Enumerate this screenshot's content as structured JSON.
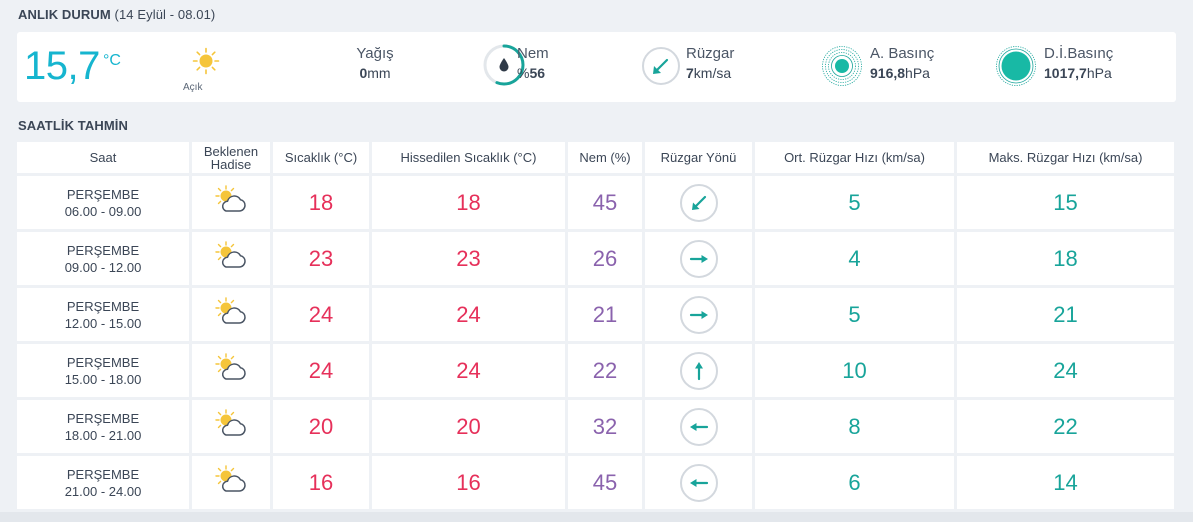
{
  "now": {
    "title": "ANLIK DURUM",
    "date_text": "(14 Eylül - 08.01)",
    "temperature": "15,7",
    "temp_unit": "°C",
    "condition": "Açık",
    "condition_icon": "sun-icon",
    "rain": {
      "label": "Yağış",
      "value": "0",
      "unit": "mm"
    },
    "humidity": {
      "label": "Nem",
      "prefix": "%",
      "value": "56",
      "percent": 56
    },
    "wind": {
      "label": "Rüzgar",
      "value": "7",
      "unit": "km/sa",
      "direction_icon": "arrow-down-left-icon"
    },
    "pressure": {
      "label": "A. Basınç",
      "value": "916,8",
      "unit": "hPa"
    },
    "sea_pressure": {
      "label": "D.İ.Basınç",
      "value": "1017,7",
      "unit": "hPa"
    }
  },
  "hourly": {
    "title": "SAATLİK TAHMİN",
    "headers": {
      "time": "Saat",
      "event_1": "Beklenen",
      "event_2": "Hadise",
      "temp": "Sıcaklık (°C)",
      "feels": "Hissedilen Sıcaklık (°C)",
      "humidity": "Nem (%)",
      "wind_dir": "Rüzgar Yönü",
      "wind_avg": "Ort. Rüzgar Hızı (km/sa)",
      "wind_max": "Maks. Rüzgar Hızı (km/sa)"
    },
    "rows": [
      {
        "day": "PERŞEMBE",
        "range": "06.00 - 09.00",
        "icon": "partly-cloudy-icon",
        "temp": "18",
        "feels": "18",
        "humidity": "45",
        "wind_dir": "down-left",
        "wind_avg": "5",
        "wind_max": "15"
      },
      {
        "day": "PERŞEMBE",
        "range": "09.00 - 12.00",
        "icon": "partly-cloudy-icon",
        "temp": "23",
        "feels": "23",
        "humidity": "26",
        "wind_dir": "right",
        "wind_avg": "4",
        "wind_max": "18"
      },
      {
        "day": "PERŞEMBE",
        "range": "12.00 - 15.00",
        "icon": "partly-cloudy-icon",
        "temp": "24",
        "feels": "24",
        "humidity": "21",
        "wind_dir": "right",
        "wind_avg": "5",
        "wind_max": "21"
      },
      {
        "day": "PERŞEMBE",
        "range": "15.00 - 18.00",
        "icon": "partly-cloudy-icon",
        "temp": "24",
        "feels": "24",
        "humidity": "22",
        "wind_dir": "up",
        "wind_avg": "10",
        "wind_max": "24"
      },
      {
        "day": "PERŞEMBE",
        "range": "18.00 - 21.00",
        "icon": "partly-cloudy-icon",
        "temp": "20",
        "feels": "20",
        "humidity": "32",
        "wind_dir": "left",
        "wind_avg": "8",
        "wind_max": "22"
      },
      {
        "day": "PERŞEMBE",
        "range": "21.00 - 24.00",
        "icon": "partly-cloudy-icon",
        "temp": "16",
        "feels": "16",
        "humidity": "45",
        "wind_dir": "left",
        "wind_avg": "6",
        "wind_max": "14"
      }
    ]
  },
  "colors": {
    "accent": "#16b5cf",
    "teal": "#18a49a",
    "temp_red": "#e6305a",
    "humidity_purple": "#8a62ad",
    "sun": "#f5c53a"
  }
}
